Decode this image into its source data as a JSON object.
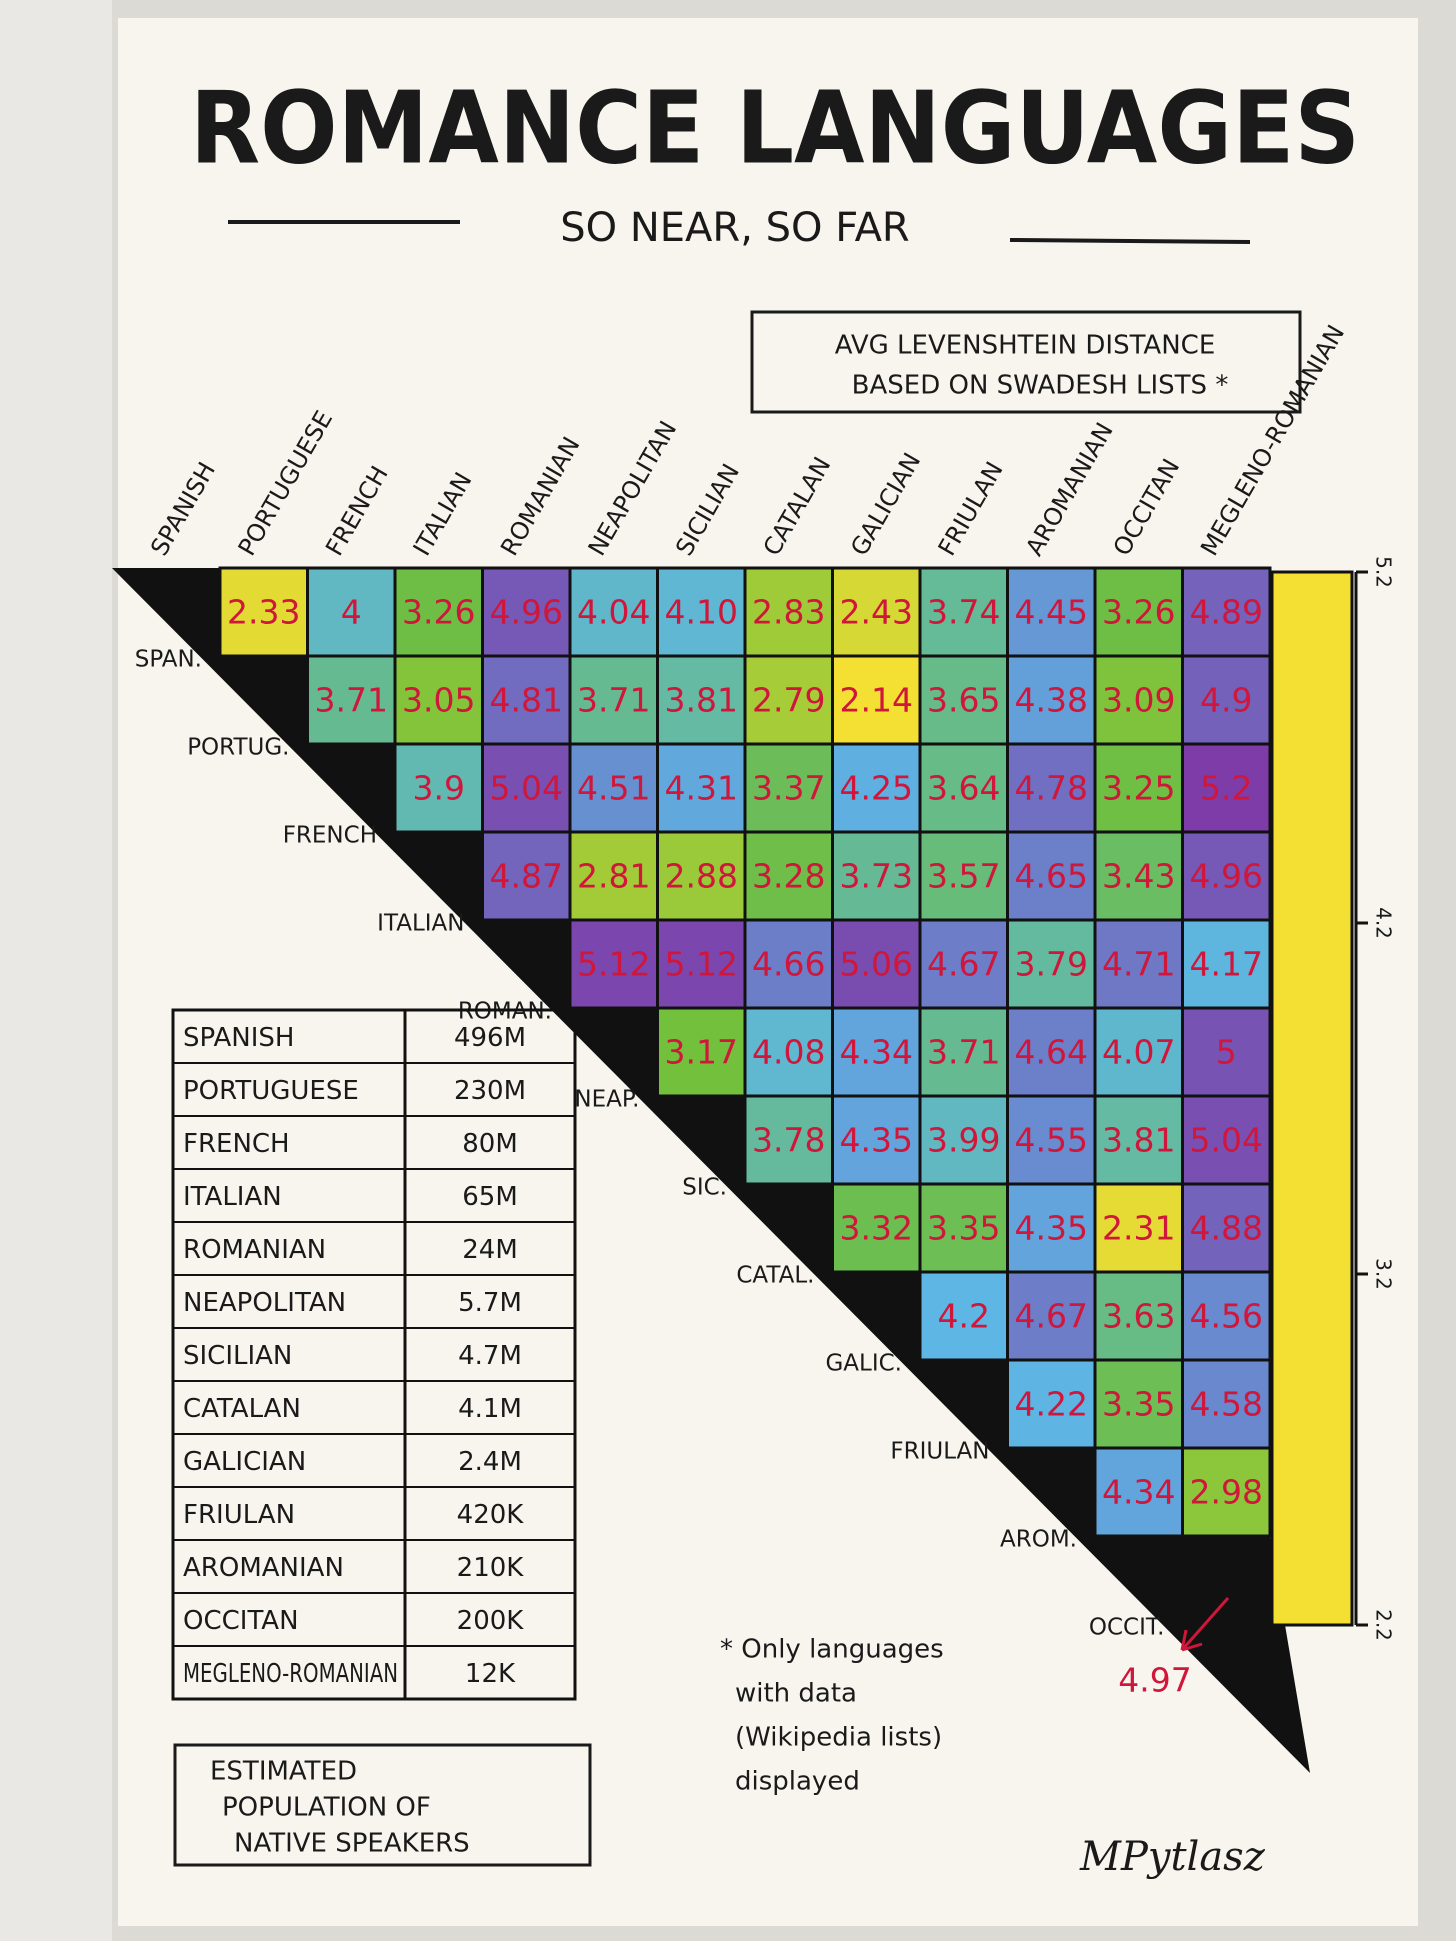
{
  "chart_data": {
    "type": "heatmap",
    "title": "ROMANCE LANGUAGES",
    "subtitle": "SO NEAR, SO FAR",
    "legend_title": [
      "AVG LEVENSHTEIN DISTANCE",
      "BASED ON SWADESH LISTS *"
    ],
    "columns": [
      "SPANISH",
      "PORTUGUESE",
      "FRENCH",
      "ITALIAN",
      "ROMANIAN",
      "NEAPOLITAN",
      "SICILIAN",
      "CATALAN",
      "GALICIAN",
      "FRIULAN",
      "AROMANIAN",
      "OCCITAN",
      "MEGLENO-ROMANIAN"
    ],
    "rows": [
      "SPAN.",
      "PORTUG.",
      "FRENCH",
      "ITALIAN",
      "ROMAN.",
      "NEAP.",
      "SIC.",
      "CATAL.",
      "GALIC.",
      "FRIULAN",
      "AROM.",
      "OCCIT."
    ],
    "values": [
      [
        2.33,
        4,
        3.26,
        4.96,
        4.04,
        4.1,
        2.83,
        2.43,
        3.74,
        4.45,
        3.26,
        4.89
      ],
      [
        3.71,
        3.05,
        4.81,
        3.71,
        3.81,
        2.79,
        2.14,
        3.65,
        4.38,
        3.09,
        4.9
      ],
      [
        3.9,
        5.04,
        4.51,
        4.31,
        3.37,
        4.25,
        3.64,
        4.78,
        3.25,
        5.2
      ],
      [
        4.87,
        2.81,
        2.88,
        3.28,
        3.73,
        3.57,
        4.65,
        3.43,
        4.96
      ],
      [
        5.12,
        5.12,
        4.66,
        5.06,
        4.67,
        3.79,
        4.71,
        4.17
      ],
      [
        3.17,
        4.08,
        4.34,
        3.71,
        4.64,
        4.07,
        5
      ],
      [
        3.78,
        4.35,
        3.99,
        4.55,
        3.81,
        5.04
      ],
      [
        3.32,
        3.35,
        4.35,
        2.31,
        4.88
      ],
      [
        4.2,
        4.67,
        3.63,
        4.56
      ],
      [
        4.22,
        3.35,
        4.58
      ],
      [
        4.34,
        2.98
      ],
      [
        4.97
      ]
    ],
    "value_labels": [
      [
        "2.33",
        "4",
        "3.26",
        "4.96",
        "4.04",
        "4.10",
        "2.83",
        "2.43",
        "3.74",
        "4.45",
        "3.26",
        "4.89"
      ],
      [
        "3.71",
        "3.05",
        "4.81",
        "3.71",
        "3.81",
        "2.79",
        "2.14",
        "3.65",
        "4.38",
        "3.09",
        "4.9"
      ],
      [
        "3.9",
        "5.04",
        "4.51",
        "4.31",
        "3.37",
        "4.25",
        "3.64",
        "4.78",
        "3.25",
        "5.2"
      ],
      [
        "4.87",
        "2.81",
        "2.88",
        "3.28",
        "3.73",
        "3.57",
        "4.65",
        "3.43",
        "4.96"
      ],
      [
        "5.12",
        "5.12",
        "4.66",
        "5.06",
        "4.67",
        "3.79",
        "4.71",
        "4.17"
      ],
      [
        "3.17",
        "4.08",
        "4.34",
        "3.71",
        "4.64",
        "4.07",
        "5"
      ],
      [
        "3.78",
        "4.35",
        "3.99",
        "4.55",
        "3.81",
        "5.04"
      ],
      [
        "3.32",
        "3.35",
        "4.35",
        "2.31",
        "4.88"
      ],
      [
        "4.2",
        "4.67",
        "3.63",
        "4.56"
      ],
      [
        "4.22",
        "3.35",
        "4.58"
      ],
      [
        "4.34",
        "2.98"
      ],
      [
        "4.97"
      ]
    ],
    "zlim": [
      2.2,
      5.2
    ],
    "zticks": [
      2.2,
      3.2,
      4.2,
      5.2
    ],
    "colors": [
      "#f4df33",
      "#6fbf3c",
      "#5db6e4",
      "#7e3ca8"
    ],
    "footnote": [
      "* Only languages",
      "with data",
      "(Wikipedia lists)",
      "displayed"
    ]
  },
  "table": {
    "rows": [
      [
        "SPANISH",
        "496M"
      ],
      [
        "PORTUGUESE",
        "230M"
      ],
      [
        "FRENCH",
        "80M"
      ],
      [
        "ITALIAN",
        "65M"
      ],
      [
        "ROMANIAN",
        "24M"
      ],
      [
        "NEAPOLITAN",
        "5.7M"
      ],
      [
        "SICILIAN",
        "4.7M"
      ],
      [
        "CATALAN",
        "4.1M"
      ],
      [
        "GALICIAN",
        "2.4M"
      ],
      [
        "FRIULAN",
        "420K"
      ],
      [
        "AROMANIAN",
        "210K"
      ],
      [
        "OCCITAN",
        "200K"
      ],
      [
        "MEGLENO-ROMANIAN",
        "12K"
      ]
    ],
    "caption": [
      "ESTIMATED",
      "POPULATION OF",
      "NATIVE SPEAKERS"
    ]
  },
  "signature": "MPytlasz"
}
